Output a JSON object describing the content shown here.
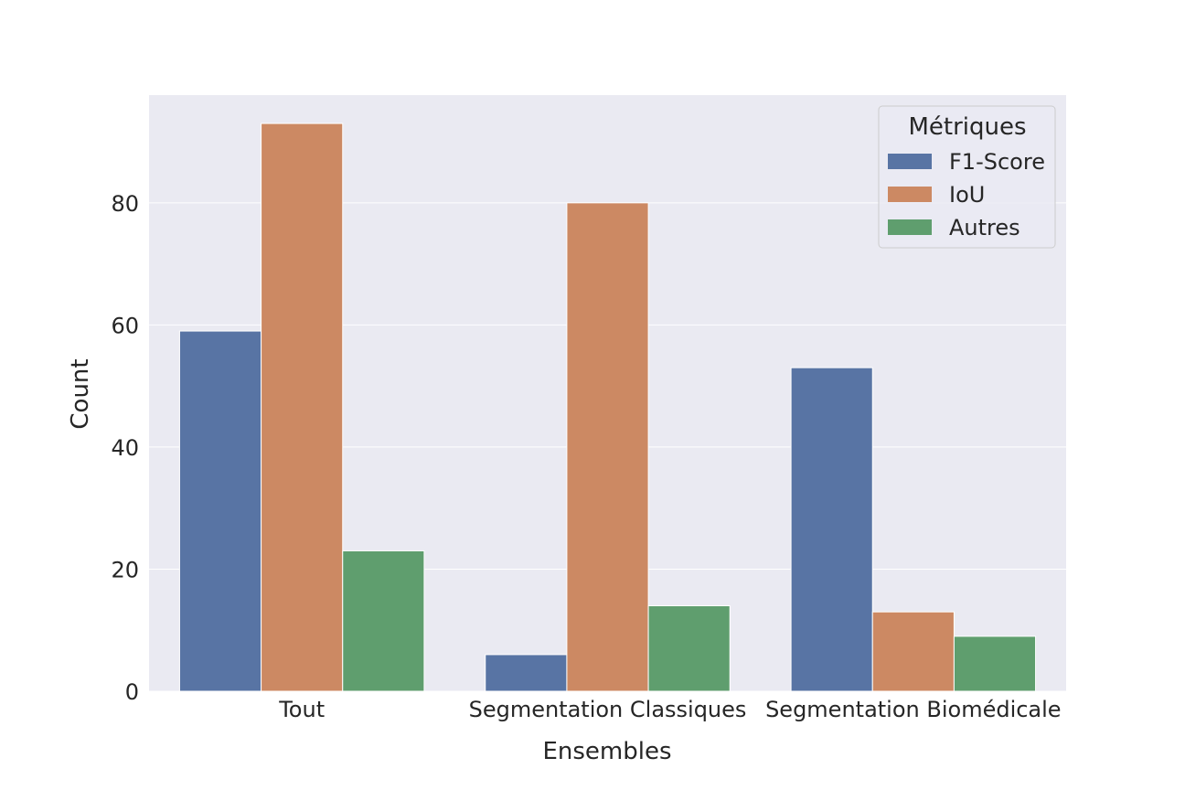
{
  "chart_data": {
    "type": "bar",
    "title": "",
    "xlabel": "Ensembles",
    "ylabel": "Count",
    "categories": [
      "Tout",
      "Segmentation Classiques",
      "Segmentation Biomédicale"
    ],
    "series": [
      {
        "name": "F1-Score",
        "values": [
          59,
          6,
          53
        ],
        "color": "#5874a4"
      },
      {
        "name": "IoU",
        "values": [
          93,
          80,
          13
        ],
        "color": "#cc8963"
      },
      {
        "name": "Autres",
        "values": [
          23,
          14,
          9
        ],
        "color": "#5f9e6e"
      }
    ],
    "ylim": [
      0,
      97.65
    ],
    "yticks": [
      0,
      20,
      40,
      60,
      80
    ],
    "grid": true,
    "legend": {
      "title": "Métriques",
      "position": "top-right"
    },
    "background": "#eaeaf2"
  }
}
